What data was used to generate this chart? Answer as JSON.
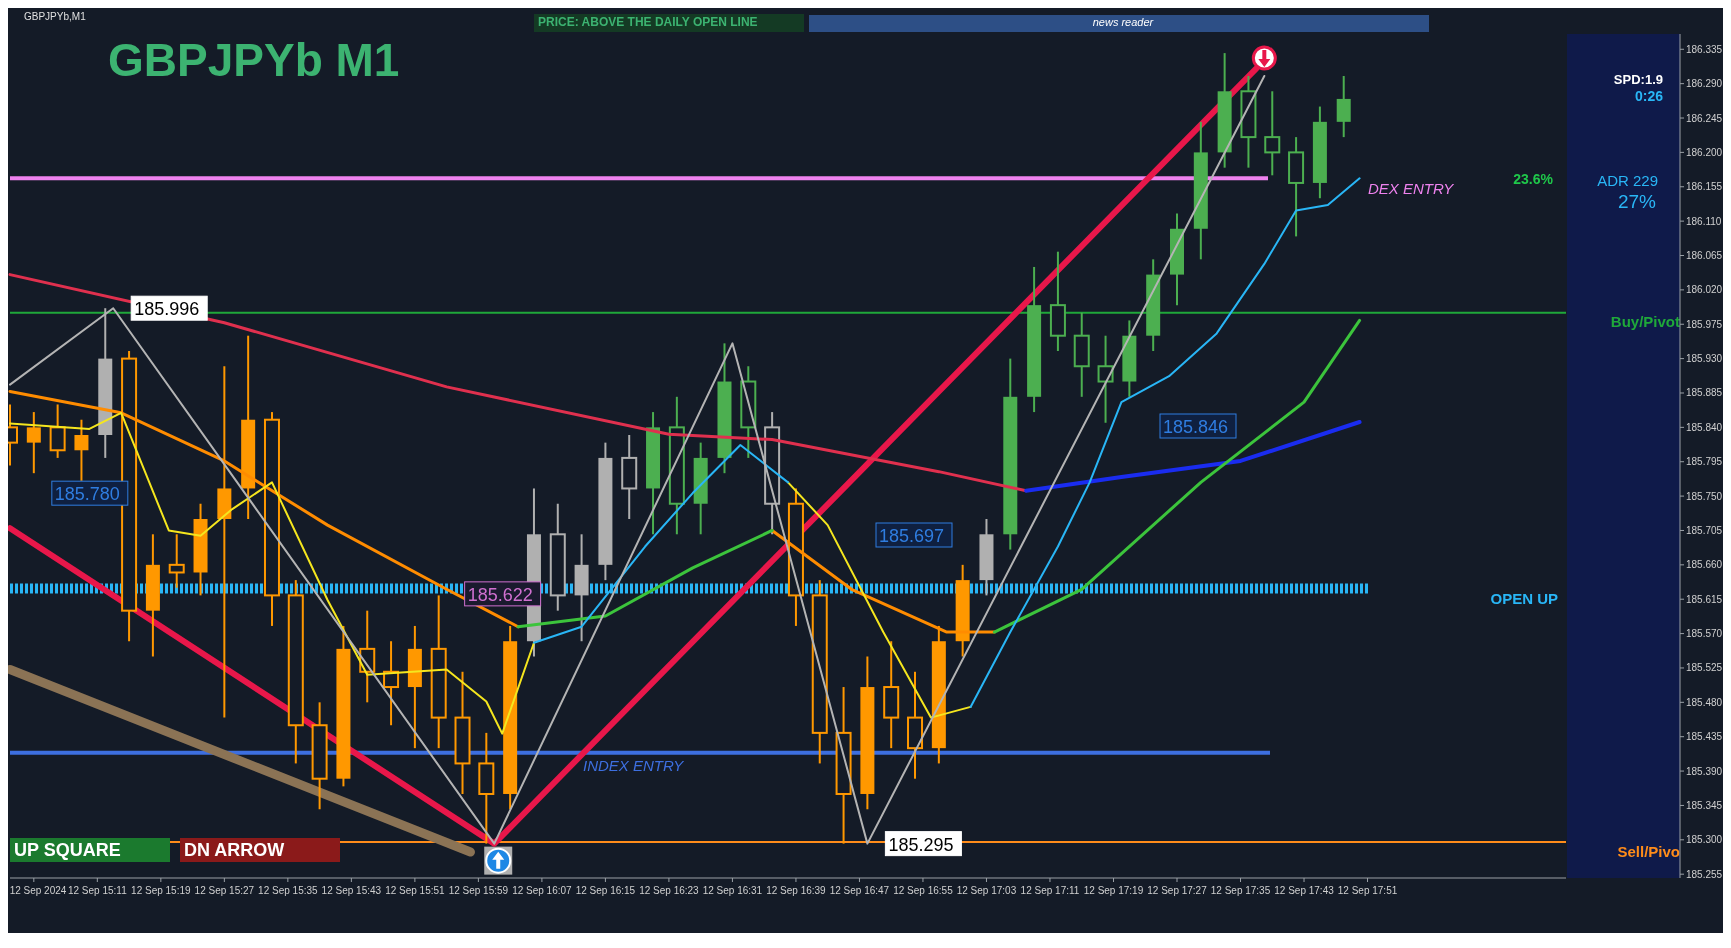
{
  "chart_data": {
    "type": "candlestick",
    "title": "GBPJPYb M1",
    "x": [
      "2024-09-12T15:00",
      "2024-09-12T15:03",
      "2024-09-12T15:06",
      "2024-09-12T15:09",
      "2024-09-12T15:12",
      "2024-09-12T15:15",
      "2024-09-12T15:18",
      "2024-09-12T15:21",
      "2024-09-12T15:24",
      "2024-09-12T15:27",
      "2024-09-12T15:30",
      "2024-09-12T15:33",
      "2024-09-12T15:36",
      "2024-09-12T15:39",
      "2024-09-12T15:42",
      "2024-09-12T15:45",
      "2024-09-12T15:48",
      "2024-09-12T15:51",
      "2024-09-12T15:54",
      "2024-09-12T15:57",
      "2024-09-12T16:00",
      "2024-09-12T16:03",
      "2024-09-12T16:06",
      "2024-09-12T16:09",
      "2024-09-12T16:12",
      "2024-09-12T16:15",
      "2024-09-12T16:18",
      "2024-09-12T16:21",
      "2024-09-12T16:24",
      "2024-09-12T16:27",
      "2024-09-12T16:30",
      "2024-09-12T16:33",
      "2024-09-12T16:36",
      "2024-09-12T16:39",
      "2024-09-12T16:42",
      "2024-09-12T16:45",
      "2024-09-12T16:48",
      "2024-09-12T16:51",
      "2024-09-12T16:54",
      "2024-09-12T16:57",
      "2024-09-12T17:00",
      "2024-09-12T17:03",
      "2024-09-12T17:06",
      "2024-09-12T17:09",
      "2024-09-12T17:12",
      "2024-09-12T17:15",
      "2024-09-12T17:18",
      "2024-09-12T17:21",
      "2024-09-12T17:24",
      "2024-09-12T17:27",
      "2024-09-12T17:30",
      "2024-09-12T17:33",
      "2024-09-12T17:36",
      "2024-09-12T17:39",
      "2024-09-12T17:42",
      "2024-09-12T17:45",
      "2024-09-12T17:48"
    ],
    "ohlc": [
      [
        185.84,
        185.87,
        185.79,
        185.82
      ],
      [
        185.82,
        185.86,
        185.78,
        185.84
      ],
      [
        185.84,
        185.87,
        185.8,
        185.81
      ],
      [
        185.81,
        185.85,
        185.77,
        185.83
      ],
      [
        185.83,
        185.996,
        185.8,
        185.93
      ],
      [
        185.93,
        185.94,
        185.56,
        185.6
      ],
      [
        185.6,
        185.7,
        185.54,
        185.66
      ],
      [
        185.66,
        185.7,
        185.63,
        185.65
      ],
      [
        185.65,
        185.74,
        185.62,
        185.72
      ],
      [
        185.72,
        185.92,
        185.46,
        185.76
      ],
      [
        185.76,
        185.96,
        185.72,
        185.85
      ],
      [
        185.85,
        185.86,
        185.58,
        185.62
      ],
      [
        185.62,
        185.64,
        185.4,
        185.45
      ],
      [
        185.45,
        185.48,
        185.34,
        185.38
      ],
      [
        185.38,
        185.58,
        185.37,
        185.55
      ],
      [
        185.55,
        185.6,
        185.48,
        185.52
      ],
      [
        185.52,
        185.56,
        185.45,
        185.5
      ],
      [
        185.5,
        185.58,
        185.42,
        185.55
      ],
      [
        185.55,
        185.62,
        185.42,
        185.46
      ],
      [
        185.46,
        185.52,
        185.36,
        185.4
      ],
      [
        185.4,
        185.44,
        185.295,
        185.36
      ],
      [
        185.36,
        185.58,
        185.34,
        185.56
      ],
      [
        185.56,
        185.76,
        185.54,
        185.7
      ],
      [
        185.7,
        185.74,
        185.6,
        185.62
      ],
      [
        185.62,
        185.7,
        185.56,
        185.66
      ],
      [
        185.66,
        185.82,
        185.64,
        185.8
      ],
      [
        185.8,
        185.83,
        185.72,
        185.76
      ],
      [
        185.76,
        185.86,
        185.7,
        185.84
      ],
      [
        185.84,
        185.88,
        185.7,
        185.74
      ],
      [
        185.74,
        185.82,
        185.7,
        185.8
      ],
      [
        185.8,
        185.95,
        185.78,
        185.9
      ],
      [
        185.9,
        185.92,
        185.8,
        185.84
      ],
      [
        185.84,
        185.86,
        185.7,
        185.74
      ],
      [
        185.74,
        185.76,
        185.58,
        185.62
      ],
      [
        185.62,
        185.64,
        185.4,
        185.44
      ],
      [
        185.44,
        185.5,
        185.295,
        185.36
      ],
      [
        185.36,
        185.54,
        185.34,
        185.5
      ],
      [
        185.5,
        185.56,
        185.42,
        185.46
      ],
      [
        185.46,
        185.52,
        185.38,
        185.42
      ],
      [
        185.42,
        185.58,
        185.4,
        185.56
      ],
      [
        185.56,
        185.66,
        185.54,
        185.64
      ],
      [
        185.64,
        185.72,
        185.62,
        185.7
      ],
      [
        185.7,
        185.93,
        185.68,
        185.88
      ],
      [
        185.88,
        186.05,
        185.86,
        186.0
      ],
      [
        186.0,
        186.07,
        185.94,
        185.96
      ],
      [
        185.96,
        185.99,
        185.88,
        185.92
      ],
      [
        185.92,
        185.96,
        185.846,
        185.9
      ],
      [
        185.9,
        185.98,
        185.88,
        185.96
      ],
      [
        185.96,
        186.06,
        185.94,
        186.04
      ],
      [
        186.04,
        186.12,
        186.0,
        186.1
      ],
      [
        186.1,
        186.24,
        186.06,
        186.2
      ],
      [
        186.2,
        186.33,
        186.18,
        186.28
      ],
      [
        186.28,
        186.3,
        186.18,
        186.22
      ],
      [
        186.22,
        186.28,
        186.17,
        186.2
      ],
      [
        186.2,
        186.22,
        186.09,
        186.16
      ],
      [
        186.16,
        186.26,
        186.14,
        186.24
      ],
      [
        186.24,
        186.3,
        186.22,
        186.27
      ]
    ],
    "colors": [
      "#ff9800",
      "#ff9800",
      "#ff9800",
      "#ff9800",
      "#b0b0b0",
      "#ff9800",
      "#ff9800",
      "#ff9800",
      "#ff9800",
      "#ff9800",
      "#ff9800",
      "#ff9800",
      "#ff9800",
      "#ff9800",
      "#ff9800",
      "#ff9800",
      "#ff9800",
      "#ff9800",
      "#ff9800",
      "#ff9800",
      "#ff9800",
      "#ff9800",
      "#b0b0b0",
      "#b0b0b0",
      "#b0b0b0",
      "#b0b0b0",
      "#b0b0b0",
      "#4caf50",
      "#4caf50",
      "#4caf50",
      "#4caf50",
      "#4caf50",
      "#b0b0b0",
      "#ff9800",
      "#ff9800",
      "#ff9800",
      "#ff9800",
      "#ff9800",
      "#ff9800",
      "#ff9800",
      "#ff9800",
      "#b0b0b0",
      "#4caf50",
      "#4caf50",
      "#4caf50",
      "#4caf50",
      "#4caf50",
      "#4caf50",
      "#4caf50",
      "#4caf50",
      "#4caf50",
      "#4caf50",
      "#4caf50",
      "#4caf50",
      "#4caf50",
      "#4caf50",
      "#4caf50"
    ],
    "series": [
      {
        "type": "line",
        "color": "#e0304e",
        "x": [
          "2024-09-12T15:00",
          "2024-09-12T15:27",
          "2024-09-12T15:55",
          "2024-09-12T16:23",
          "2024-09-12T16:36",
          "2024-09-12T16:57",
          "2024-09-12T17:08"
        ],
        "values": [
          186.04,
          185.977,
          185.893,
          185.831,
          185.824,
          185.782,
          185.757
        ]
      },
      {
        "type": "line",
        "color": "#1a2cf0",
        "x": [
          "2024-09-12T17:08",
          "2024-09-12T17:20",
          "2024-09-12T17:35",
          "2024-09-12T17:50"
        ],
        "values": [
          185.757,
          185.775,
          185.796,
          185.847
        ]
      },
      {
        "type": "line",
        "color": "#ff8c00",
        "x": [
          "2024-09-12T15:00",
          "2024-09-12T15:14",
          "2024-09-12T15:27",
          "2024-09-12T15:40",
          "2024-09-12T15:55",
          "2024-09-12T16:04",
          "2024-09-12T16:20",
          "2024-09-12T16:36",
          "2024-09-12T16:46",
          "2024-09-12T16:58",
          "2024-09-12T17:04"
        ],
        "values": [
          185.887,
          185.859,
          185.796,
          185.712,
          185.628,
          185.579,
          null,
          185.705,
          185.628,
          185.572,
          185.572
        ]
      },
      {
        "type": "line",
        "color": "#3cc43c",
        "x": [
          "2024-09-12T16:04",
          "2024-09-12T16:15",
          "2024-09-12T16:26",
          "2024-09-12T16:36",
          "2024-09-12T16:50",
          "2024-09-12T17:04",
          "2024-09-12T17:15",
          "2024-09-12T17:30",
          "2024-09-12T17:43",
          "2024-09-12T17:50"
        ],
        "values": [
          185.579,
          185.593,
          185.656,
          185.705,
          null,
          185.572,
          185.628,
          185.768,
          185.873,
          185.98
        ]
      },
      {
        "type": "line",
        "color": "#f5e61e",
        "x": [
          "2024-09-12T15:00",
          "2024-09-12T15:10",
          "2024-09-12T15:14",
          "2024-09-12T15:20",
          "2024-09-12T15:24",
          "2024-09-12T15:28",
          "2024-09-12T15:33",
          "2024-09-12T15:40",
          "2024-09-12T15:45",
          "2024-09-12T15:55",
          "2024-09-12T16:00",
          "2024-09-12T16:02",
          "2024-09-12T16:06",
          "2024-09-12T16:20",
          "2024-09-12T16:38",
          "2024-09-12T16:43",
          "2024-09-12T16:50",
          "2024-09-12T16:56",
          "2024-09-12T17:01"
        ],
        "values": [
          185.845,
          185.838,
          185.859,
          185.705,
          185.698,
          185.733,
          185.768,
          185.614,
          185.516,
          185.523,
          185.481,
          185.439,
          185.558,
          null,
          185.768,
          185.712,
          185.572,
          185.46,
          185.474
        ]
      },
      {
        "type": "line",
        "color": "#29b6f6",
        "x": [
          "2024-09-12T16:06",
          "2024-09-12T16:12",
          "2024-09-12T16:20",
          "2024-09-12T16:26",
          "2024-09-12T16:32",
          "2024-09-12T16:38",
          "2024-09-12T16:50",
          "2024-09-12T17:01",
          "2024-09-12T17:06",
          "2024-09-12T17:12",
          "2024-09-12T17:16",
          "2024-09-12T17:20",
          "2024-09-12T17:26",
          "2024-09-12T17:32",
          "2024-09-12T17:38",
          "2024-09-12T17:42",
          "2024-09-12T17:46",
          "2024-09-12T17:50"
        ],
        "values": [
          185.558,
          185.579,
          185.684,
          185.754,
          185.817,
          185.768,
          null,
          185.474,
          185.572,
          185.684,
          185.768,
          185.873,
          185.907,
          185.963,
          186.054,
          186.124,
          186.131,
          186.166
        ]
      },
      {
        "type": "line",
        "color": "#b4b4b4",
        "x": [
          "2024-09-12T15:00",
          "2024-09-12T15:13",
          "2024-09-12T16:01",
          "2024-09-12T16:31",
          "2024-09-12T16:48",
          "2024-09-12T17:38"
        ],
        "values": [
          185.896,
          185.996,
          185.295,
          185.95,
          185.295,
          186.3
        ]
      },
      {
        "type": "line",
        "color": "#e8174a",
        "x": [
          "2024-09-12T15:00",
          "2024-09-12T16:01",
          "2024-09-12T17:37"
        ],
        "values": [
          185.708,
          185.295,
          186.31
        ]
      },
      {
        "type": "line",
        "color": "#8b7355",
        "x": [
          "2024-09-12T15:00",
          "2024-09-12T15:58"
        ],
        "values": [
          185.523,
          185.284
        ]
      }
    ],
    "xlim": [
      "2024-09-12T15:00",
      "2024-09-12T18:16"
    ],
    "xticks": [
      {
        "value": "2024-09-12T15:03",
        "label": "12 Sep 2024"
      },
      {
        "value": "2024-09-12T15:11",
        "label": "12 Sep 15:11"
      },
      {
        "value": "2024-09-12T15:19",
        "label": "12 Sep 15:19"
      },
      {
        "value": "2024-09-12T15:27",
        "label": "12 Sep 15:27"
      },
      {
        "value": "2024-09-12T15:35",
        "label": "12 Sep 15:35"
      },
      {
        "value": "2024-09-12T15:43",
        "label": "12 Sep 15:43"
      },
      {
        "value": "2024-09-12T15:51",
        "label": "12 Sep 15:51"
      },
      {
        "value": "2024-09-12T15:59",
        "label": "12 Sep 15:59"
      },
      {
        "value": "2024-09-12T16:07",
        "label": "12 Sep 16:07"
      },
      {
        "value": "2024-09-12T16:15",
        "label": "12 Sep 16:15"
      },
      {
        "value": "2024-09-12T16:23",
        "label": "12 Sep 16:23"
      },
      {
        "value": "2024-09-12T16:31",
        "label": "12 Sep 16:31"
      },
      {
        "value": "2024-09-12T16:39",
        "label": "12 Sep 16:39"
      },
      {
        "value": "2024-09-12T16:47",
        "label": "12 Sep 16:47"
      },
      {
        "value": "2024-09-12T16:55",
        "label": "12 Sep 16:55"
      },
      {
        "value": "2024-09-12T17:03",
        "label": "12 Sep 17:03"
      },
      {
        "value": "2024-09-12T17:11",
        "label": "12 Sep 17:11"
      },
      {
        "value": "2024-09-12T17:19",
        "label": "12 Sep 17:19"
      },
      {
        "value": "2024-09-12T17:27",
        "label": "12 Sep 17:27"
      },
      {
        "value": "2024-09-12T17:35",
        "label": "12 Sep 17:35"
      },
      {
        "value": "2024-09-12T17:43",
        "label": "12 Sep 17:43"
      },
      {
        "value": "2024-09-12T17:51",
        "label": "12 Sep 17:51"
      }
    ],
    "ylim": [
      185.25,
      186.355
    ],
    "yticks": [
      185.255,
      {
        "value": 185.3,
        "label": "185.300"
      },
      185.345,
      {
        "value": 185.39,
        "label": "185.390"
      },
      185.435,
      {
        "value": 185.48,
        "label": "185.480"
      },
      185.525,
      {
        "value": 185.57,
        "label": "185.570"
      },
      185.615,
      {
        "value": 185.66,
        "label": "185.660"
      },
      185.705,
      {
        "value": 185.75,
        "label": "185.750"
      },
      185.795,
      {
        "value": 185.84,
        "label": "185.840"
      },
      185.885,
      {
        "value": 185.93,
        "label": "185.930"
      },
      185.975,
      {
        "value": 186.02,
        "label": "186.020"
      },
      186.065,
      {
        "value": 186.11,
        "label": "186.110"
      },
      186.155,
      {
        "value": 186.2,
        "label": "186.200"
      },
      186.245,
      {
        "value": 186.29,
        "label": "186.290"
      },
      186.335
    ],
    "ref_lines": [
      {
        "axis": "y",
        "value": 185.99,
        "label": "Buy/Pivot",
        "color": "#1fa83a"
      },
      {
        "axis": "y",
        "value": 185.297,
        "label": "Sell/Pivo",
        "color": "#ff8c1a"
      },
      {
        "axis": "y",
        "value": 185.629,
        "label": "OPEN UP",
        "color": "#29b6f6",
        "line_style": "dashed"
      },
      {
        "axis": "y",
        "value": 185.414,
        "label": "INDEX ENTRY",
        "color": "#3d6fe0"
      },
      {
        "axis": "y",
        "value": 186.166,
        "label": "DEX ENTRY",
        "color": "#ee82ee"
      }
    ],
    "annotations": [
      {
        "text": "185.996",
        "x": "2024-09-12T15:13",
        "y": 185.996
      },
      {
        "text": "185.780",
        "x": "2024-09-12T15:03",
        "y": 185.78
      },
      {
        "text": "185.622",
        "x": "2024-09-12T15:55",
        "y": 185.622
      },
      "185.697",
      "185.846",
      {
        "text": "185.295",
        "x": "2024-09-12T16:48",
        "y": 185.295
      },
      "GBPJPYb,M1",
      "PRICE: ABOVE THE DAILY OPEN LINE",
      "news reader",
      "SPD:1.9",
      "0:26",
      "ADR 229",
      "27%",
      "23.6%",
      "UP SQUARE",
      "DN ARROW"
    ],
    "grid": false
  }
}
